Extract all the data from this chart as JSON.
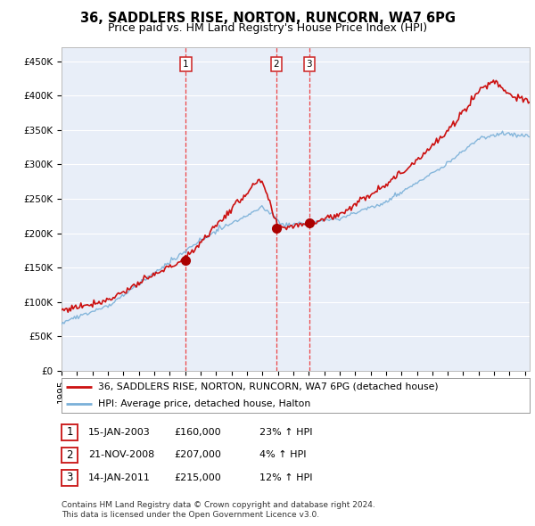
{
  "title": "36, SADDLERS RISE, NORTON, RUNCORN, WA7 6PG",
  "subtitle": "Price paid vs. HM Land Registry's House Price Index (HPI)",
  "ylabel_ticks": [
    "£0",
    "£50K",
    "£100K",
    "£150K",
    "£200K",
    "£250K",
    "£300K",
    "£350K",
    "£400K",
    "£450K"
  ],
  "ytick_values": [
    0,
    50000,
    100000,
    150000,
    200000,
    250000,
    300000,
    350000,
    400000,
    450000
  ],
  "ylim": [
    0,
    470000
  ],
  "xlim_start": 1995.0,
  "xlim_end": 2025.3,
  "background_color": "#ffffff",
  "plot_bg_color": "#e8eef8",
  "grid_color": "#ffffff",
  "sale_dates": [
    2003.04,
    2008.9,
    2011.04
  ],
  "sale_prices": [
    160000,
    207000,
    215000
  ],
  "sale_labels": [
    "1",
    "2",
    "3"
  ],
  "vline_color": "#ee3333",
  "sale_dot_color": "#aa0000",
  "hpi_line_color": "#7ab0d8",
  "price_line_color": "#cc1111",
  "legend_entries": [
    "36, SADDLERS RISE, NORTON, RUNCORN, WA7 6PG (detached house)",
    "HPI: Average price, detached house, Halton"
  ],
  "table_data": [
    [
      "1",
      "15-JAN-2003",
      "£160,000",
      "23% ↑ HPI"
    ],
    [
      "2",
      "21-NOV-2008",
      "£207,000",
      "4% ↑ HPI"
    ],
    [
      "3",
      "14-JAN-2011",
      "£215,000",
      "12% ↑ HPI"
    ]
  ],
  "footer": "Contains HM Land Registry data © Crown copyright and database right 2024.\nThis data is licensed under the Open Government Licence v3.0.",
  "title_fontsize": 10.5,
  "subtitle_fontsize": 9,
  "tick_fontsize": 7.5,
  "label_fontsize": 8.0,
  "footer_fontsize": 6.5
}
